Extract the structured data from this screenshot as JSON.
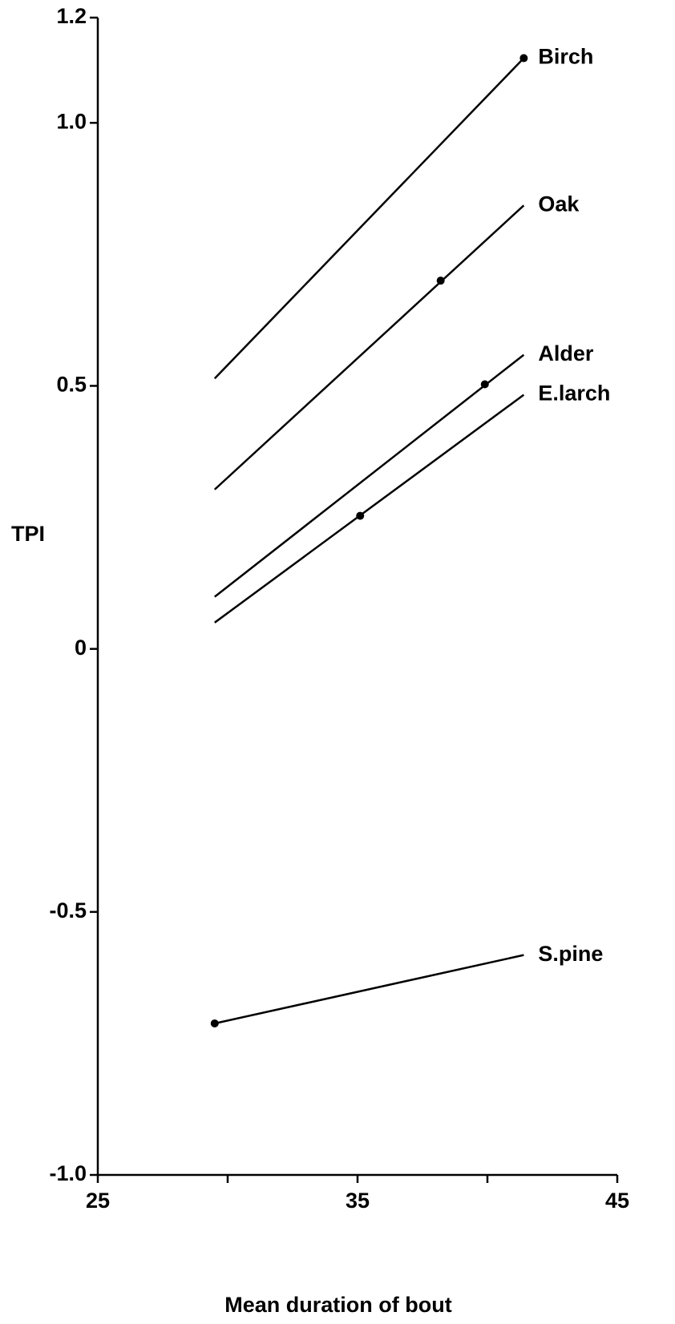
{
  "chart_data": {
    "type": "line",
    "xlabel": "Mean duration of bout",
    "ylabel": "TPI",
    "xlim": [
      25,
      45
    ],
    "ylim": [
      -1,
      1.2
    ],
    "xticks": [
      25,
      35,
      45
    ],
    "xminor_ticks": [
      30,
      40
    ],
    "yticks": [
      1.2,
      {
        "value": 1,
        "label": "1.0"
      },
      0.5,
      0,
      -0.5,
      {
        "value": -1,
        "label": "-1.0"
      }
    ],
    "color": "#000000",
    "series": [
      {
        "name": "Birch",
        "x": [
          29.5,
          41.4
        ],
        "values": [
          0.514,
          1.123
        ],
        "marker_x": 41.4,
        "marker_value": 1.123
      },
      {
        "name": "Oak",
        "x": [
          29.5,
          41.4
        ],
        "values": [
          0.303,
          0.843
        ],
        "marker_x": 38.2,
        "marker_value": 0.7
      },
      {
        "name": "Alder",
        "x": [
          29.5,
          41.4
        ],
        "values": [
          0.099,
          0.559
        ],
        "marker_x": 39.9,
        "marker_value": 0.503
      },
      {
        "name": "E.larch",
        "x": [
          29.5,
          41.4
        ],
        "values": [
          0.05,
          0.483
        ],
        "marker_x": 35.1,
        "marker_value": 0.253
      },
      {
        "name": "S.pine",
        "x": [
          29.5,
          41.4
        ],
        "values": [
          -0.712,
          -0.582
        ],
        "marker_x": 29.5,
        "marker_value": -0.712
      }
    ]
  }
}
